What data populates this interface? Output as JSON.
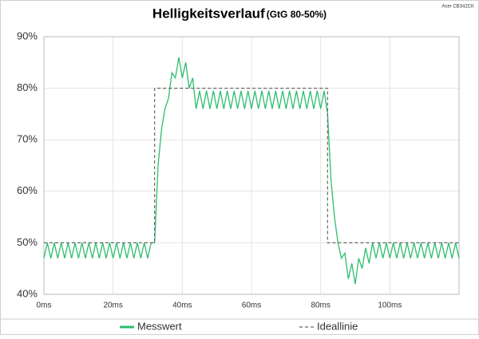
{
  "chart_data": {
    "type": "line",
    "title": "Helligkeitsverlauf",
    "subtitle": "(GtG 80-50%)",
    "annotation": "Acer CB342CK",
    "xlim": [
      0,
      120
    ],
    "xticks": [
      {
        "value": 0,
        "label": "0ms"
      },
      {
        "value": 20,
        "label": "20ms"
      },
      {
        "value": 40,
        "label": "40ms"
      },
      {
        "value": 60,
        "label": "60ms"
      },
      {
        "value": 80,
        "label": "80ms"
      },
      {
        "value": 100,
        "label": "100ms"
      }
    ],
    "ylim": [
      40,
      90
    ],
    "yticks": [
      {
        "value": 40,
        "label": "40%"
      },
      {
        "value": 50,
        "label": "50%"
      },
      {
        "value": 60,
        "label": "60%"
      },
      {
        "value": 70,
        "label": "70%"
      },
      {
        "value": 80,
        "label": "80%"
      },
      {
        "value": 90,
        "label": "90%"
      }
    ],
    "grid": true,
    "legend": "bottom",
    "series": [
      {
        "name": "Messwert",
        "color": "#2dbd6e",
        "dashed": false,
        "x": [
          0,
          1,
          2,
          3,
          4,
          5,
          6,
          7,
          8,
          9,
          10,
          11,
          12,
          13,
          14,
          15,
          16,
          17,
          18,
          19,
          20,
          21,
          22,
          23,
          24,
          25,
          26,
          27,
          28,
          29,
          30,
          31,
          32,
          33,
          34,
          35,
          36,
          37,
          38,
          39,
          40,
          41,
          42,
          43,
          44,
          45,
          46,
          47,
          48,
          49,
          50,
          51,
          52,
          53,
          54,
          55,
          56,
          57,
          58,
          59,
          60,
          61,
          62,
          63,
          64,
          65,
          66,
          67,
          68,
          69,
          70,
          71,
          72,
          73,
          74,
          75,
          76,
          77,
          78,
          79,
          80,
          81,
          82,
          83,
          84,
          85,
          86,
          87,
          88,
          89,
          90,
          91,
          92,
          93,
          94,
          95,
          96,
          97,
          98,
          99,
          100,
          101,
          102,
          103,
          104,
          105,
          106,
          107,
          108,
          109,
          110,
          111,
          112,
          113,
          114,
          115,
          116,
          117,
          118,
          119,
          120
        ],
        "values": [
          47,
          50,
          47,
          50,
          47,
          50,
          47,
          50,
          47,
          50,
          47,
          50,
          47,
          50,
          47,
          50,
          47,
          50,
          47,
          50,
          47,
          50,
          47,
          50,
          47,
          50,
          47,
          50,
          47,
          50,
          47,
          50,
          50,
          65,
          72,
          76,
          78,
          83,
          82,
          86,
          82,
          85,
          80,
          82,
          76,
          79.5,
          76,
          79.5,
          76,
          79.5,
          76,
          79.5,
          76,
          79.5,
          76,
          79.5,
          76,
          79.5,
          76,
          79.5,
          76,
          79.5,
          76,
          79.5,
          76,
          79.5,
          76,
          79.5,
          76,
          79.5,
          76,
          79.5,
          76,
          79.5,
          76,
          79.5,
          76,
          79.5,
          76,
          79.5,
          76,
          79.5,
          75,
          62,
          55,
          50,
          47,
          48,
          43,
          46,
          42,
          47,
          45,
          49,
          46,
          50,
          47,
          50,
          47,
          50,
          47,
          50,
          47,
          50,
          47,
          50,
          47,
          50,
          47,
          50,
          47,
          50,
          47,
          50,
          47,
          50,
          47,
          50,
          47,
          50,
          47
        ]
      },
      {
        "name": "Ideallinie",
        "color": "#666666",
        "dashed": true,
        "x": [
          0,
          32,
          32,
          82,
          82,
          120
        ],
        "values": [
          50,
          50,
          80,
          80,
          50,
          50
        ]
      }
    ]
  }
}
